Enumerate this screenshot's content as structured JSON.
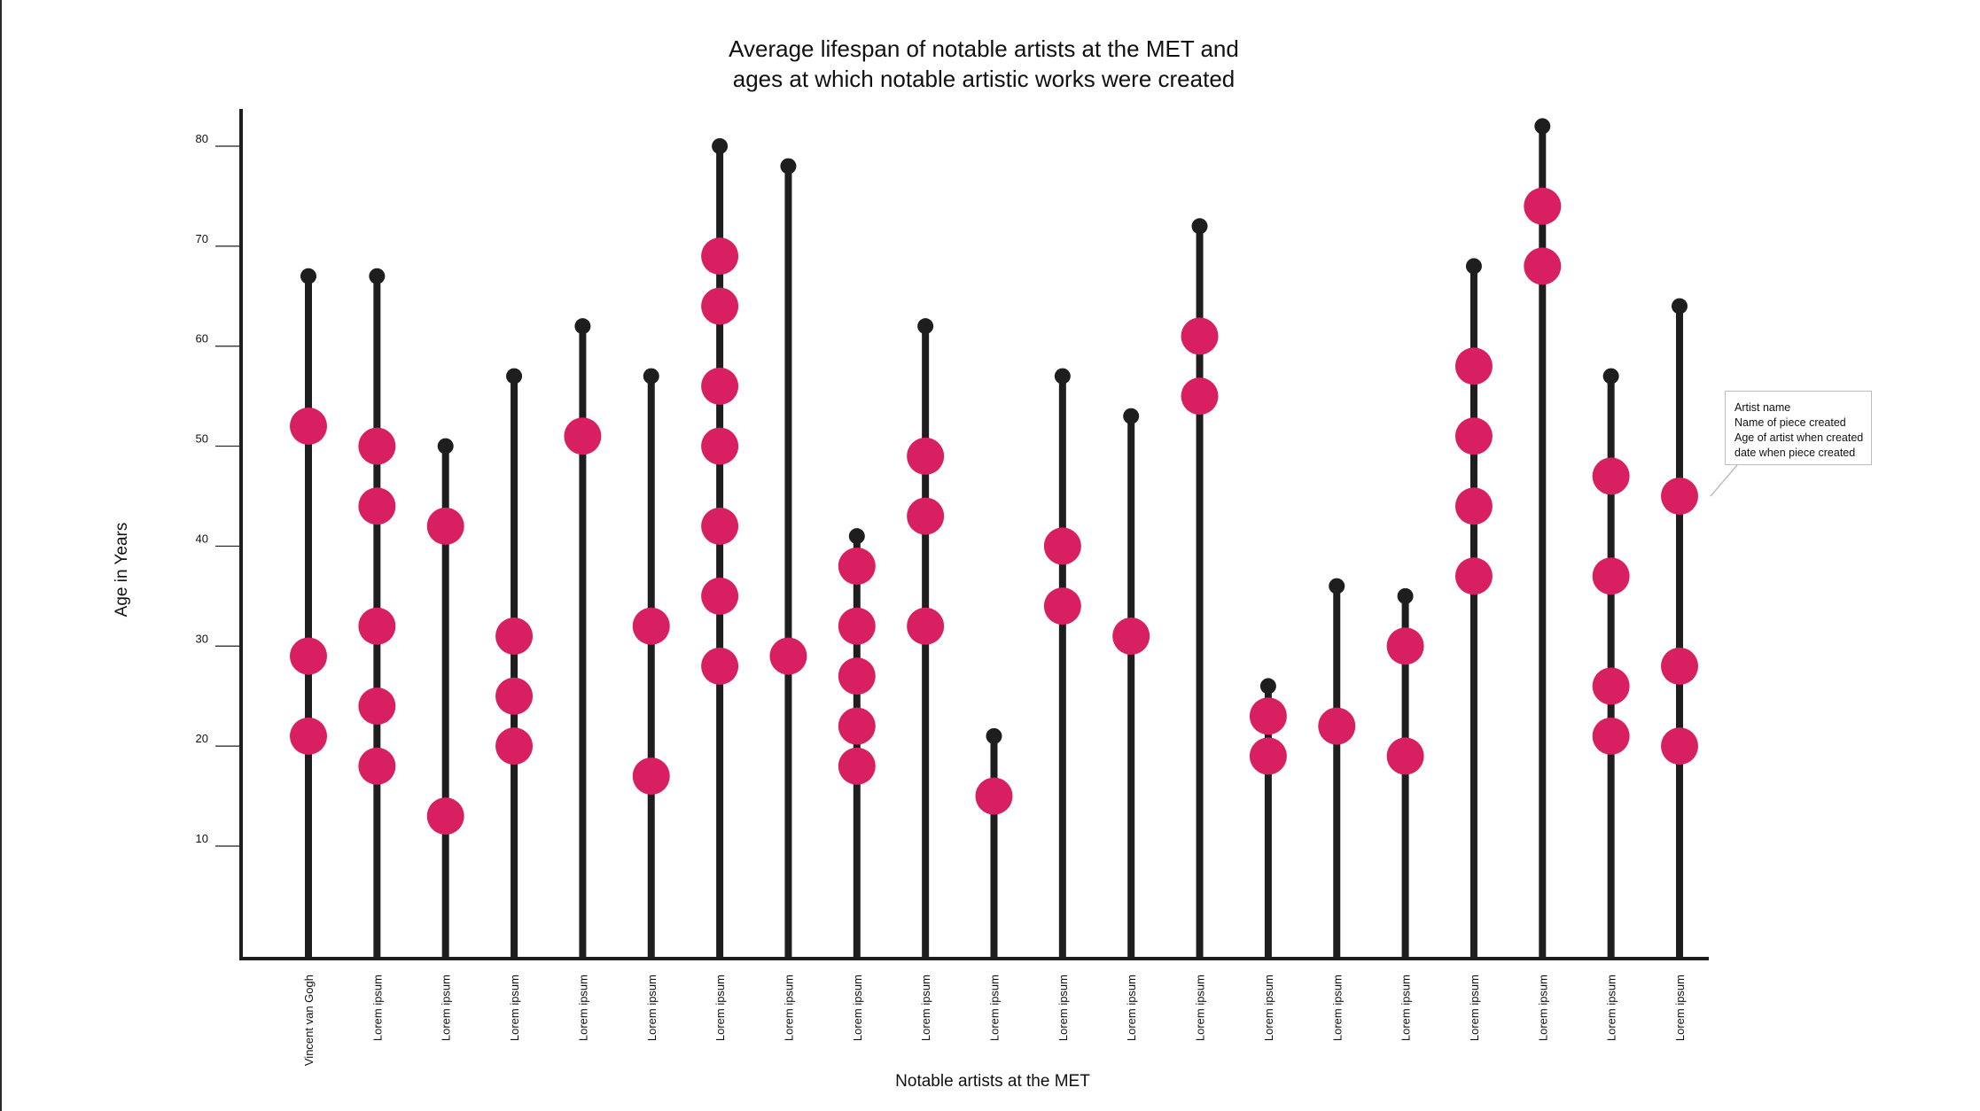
{
  "chart_data": {
    "type": "scatter",
    "title_lines": [
      "Average lifespan of notable artists at the MET and",
      "ages at which notable artistic works were created"
    ],
    "xlabel": "Notable artists at the MET",
    "ylabel": "Age in Years",
    "ylim": [
      0,
      85
    ],
    "yticks": [
      10,
      20,
      30,
      40,
      50,
      60,
      70,
      80
    ],
    "grid": false,
    "legend": "none",
    "colors": {
      "stem": "#1e1e1e",
      "work_dot": "#d81f62",
      "lifespan_dot": "#1e1e1e"
    },
    "categories": [
      "Vincent van Gogh",
      "Lorem ipsum",
      "Lorem ipsum",
      "Lorem ipsum",
      "Lorem ipsum",
      "Lorem ipsum",
      "Lorem ipsum",
      "Lorem ipsum",
      "Lorem ipsum",
      "Lorem ipsum",
      "Lorem ipsum",
      "Lorem ipsum",
      "Lorem ipsum",
      "Lorem ipsum",
      "Lorem ipsum",
      "Lorem ipsum",
      "Lorem ipsum",
      "Lorem ipsum",
      "Lorem ipsum",
      "Lorem ipsum",
      "Lorem ipsum"
    ],
    "lifespans": [
      67,
      67,
      50,
      57,
      62,
      57,
      80,
      78,
      41,
      62,
      21,
      57,
      53,
      72,
      26,
      36,
      35,
      68,
      82,
      57,
      64
    ],
    "works_ages": [
      [
        52,
        29,
        21
      ],
      [
        50,
        44,
        32,
        24,
        18
      ],
      [
        42,
        13
      ],
      [
        31,
        25,
        20
      ],
      [
        51
      ],
      [
        32,
        17
      ],
      [
        69,
        64,
        56,
        50,
        42,
        35,
        28
      ],
      [
        29
      ],
      [
        38,
        32,
        27,
        22,
        18
      ],
      [
        49,
        43,
        32
      ],
      [
        15
      ],
      [
        40,
        34
      ],
      [
        31
      ],
      [
        61,
        55
      ],
      [
        23,
        19
      ],
      [
        22
      ],
      [
        30,
        19
      ],
      [
        58,
        51,
        44,
        37
      ],
      [
        74,
        68
      ],
      [
        47,
        37,
        26,
        21
      ],
      [
        45,
        28,
        20
      ]
    ]
  },
  "tooltip": {
    "lines": [
      "Artist name",
      "Name of piece created",
      "Age of artist when created",
      "date when piece created"
    ]
  }
}
